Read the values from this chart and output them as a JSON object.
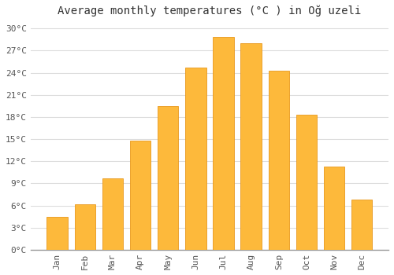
{
  "title": "Average monthly temperatures (°C ) in Oğ uzeli",
  "months": [
    "Jan",
    "Feb",
    "Mar",
    "Apr",
    "May",
    "Jun",
    "Jul",
    "Aug",
    "Sep",
    "Oct",
    "Nov",
    "Dec"
  ],
  "values": [
    4.5,
    6.2,
    9.7,
    14.8,
    19.5,
    24.7,
    28.8,
    28.0,
    24.3,
    18.3,
    11.3,
    6.8
  ],
  "bar_color": "#FDB93B",
  "bar_edge_color": "#E8981C",
  "background_color": "#FFFFFF",
  "ylim": [
    0,
    31
  ],
  "yticks": [
    0,
    3,
    6,
    9,
    12,
    15,
    18,
    21,
    24,
    27,
    30
  ],
  "ytick_labels": [
    "0°C",
    "3°C",
    "6°C",
    "9°C",
    "12°C",
    "15°C",
    "18°C",
    "21°C",
    "24°C",
    "27°C",
    "30°C"
  ],
  "grid_color": "#DDDDDD",
  "title_fontsize": 10,
  "tick_fontsize": 8,
  "font_family": "monospace"
}
